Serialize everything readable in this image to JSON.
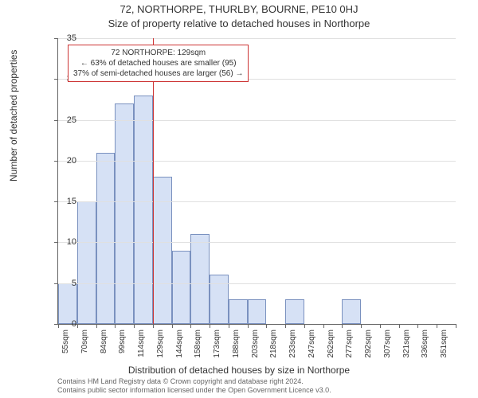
{
  "title_line1": "72, NORTHORPE, THURLBY, BOURNE, PE10 0HJ",
  "title_line2": "Size of property relative to detached houses in Northorpe",
  "ylabel": "Number of detached properties",
  "xlabel": "Distribution of detached houses by size in Northorpe",
  "credit_line1": "Contains HM Land Registry data © Crown copyright and database right 2024.",
  "credit_line2": "Contains public sector information licensed under the Open Government Licence v3.0.",
  "chart": {
    "type": "histogram",
    "y": {
      "min": 0,
      "max": 35,
      "tick_step": 5,
      "tick_labels": [
        "0",
        "5",
        "10",
        "15",
        "20",
        "25",
        "30",
        "35"
      ]
    },
    "x": {
      "categories": [
        "55sqm",
        "70sqm",
        "84sqm",
        "99sqm",
        "114sqm",
        "129sqm",
        "144sqm",
        "158sqm",
        "173sqm",
        "188sqm",
        "203sqm",
        "218sqm",
        "233sqm",
        "247sqm",
        "262sqm",
        "277sqm",
        "292sqm",
        "307sqm",
        "321sqm",
        "336sqm",
        "351sqm"
      ]
    },
    "values": [
      5,
      15,
      21,
      27,
      28,
      18,
      9,
      11,
      6,
      3,
      3,
      0,
      3,
      0,
      0,
      3,
      0,
      0,
      0,
      0,
      0
    ],
    "bar_fill": "#d6e1f5",
    "bar_border": "#7a91bf",
    "bar_width_ratio": 1.0,
    "background": "#ffffff",
    "grid_color": "#e0e0e0",
    "axis_color": "#666666",
    "title_fontsize": 13,
    "label_fontsize": 12,
    "tick_fontsize": 11
  },
  "marker": {
    "after_category_index": 5,
    "color": "#cc3333"
  },
  "annotation": {
    "lines": [
      "72 NORTHORPE: 129sqm",
      "← 63% of detached houses are smaller (95)",
      "37% of semi-detached houses are larger (56) →"
    ],
    "border_color": "#cc3333",
    "background": "#ffffff",
    "fontsize": 10
  }
}
